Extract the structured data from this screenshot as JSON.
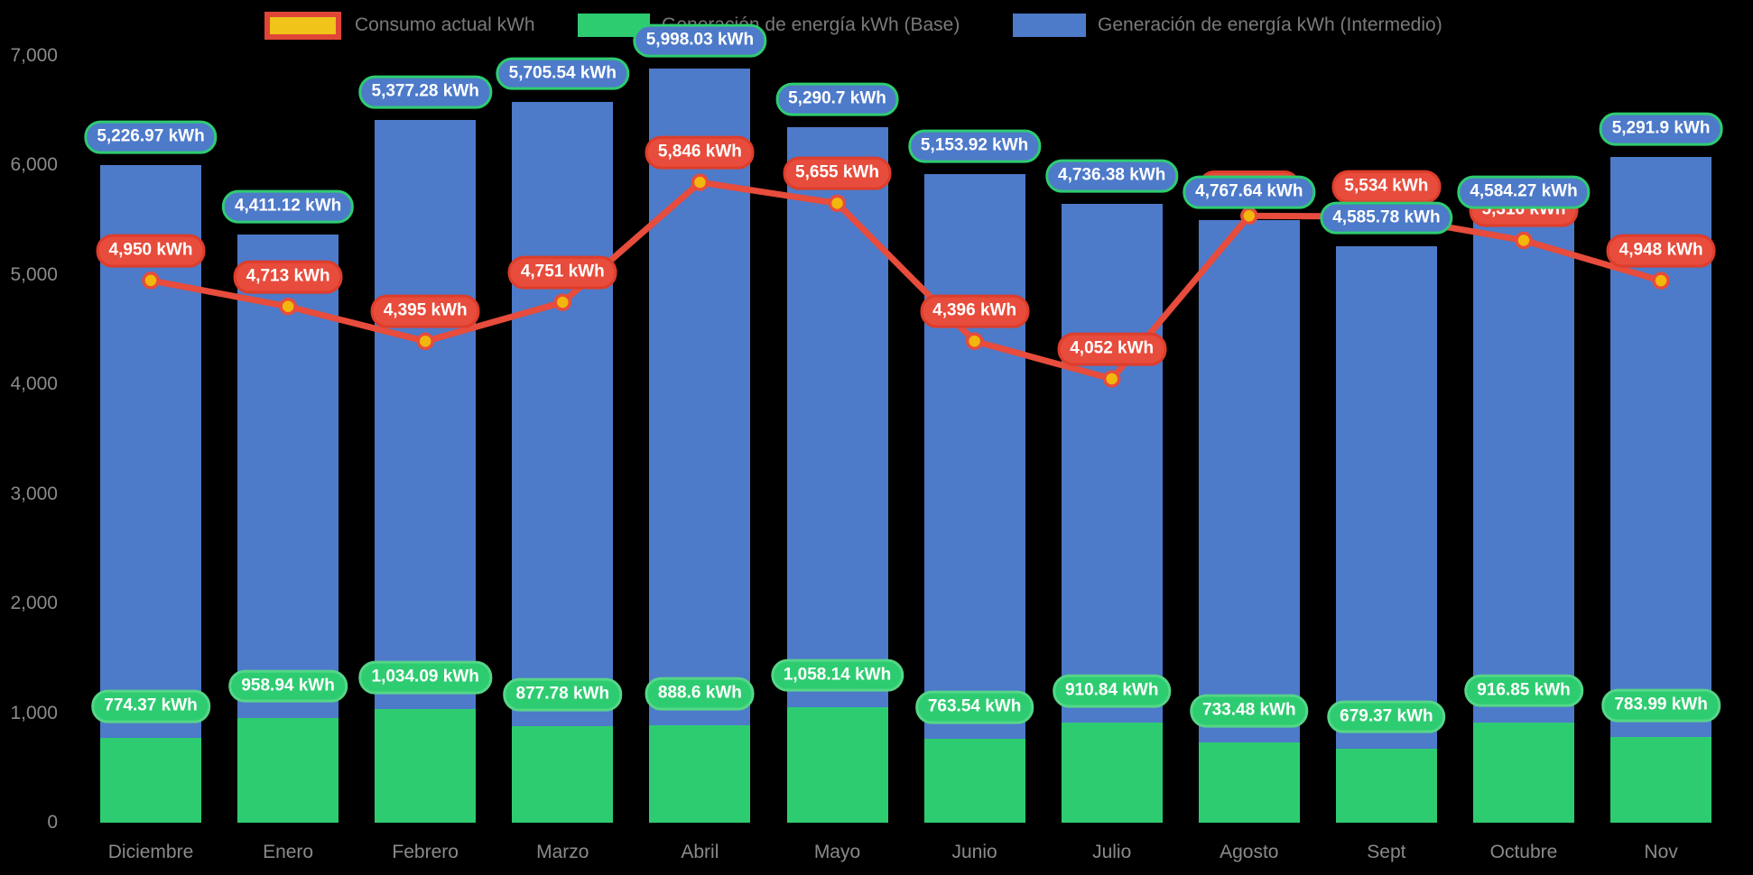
{
  "background": "#000000",
  "chart_data": {
    "type": "combo",
    "title": "",
    "categories": [
      "Diciembre",
      "Enero",
      "Febrero",
      "Marzo",
      "Abril",
      "Mayo",
      "Junio",
      "Julio",
      "Agosto",
      "Sept",
      "Octubre",
      "Nov"
    ],
    "series": [
      {
        "name": "Consumo actual kWh",
        "type": "line",
        "color": "#e74c3c",
        "marker": {
          "fill": "#f2b70d",
          "border": "#e74c3c"
        },
        "values": [
          4950,
          4713,
          4395,
          4751,
          5846,
          5655,
          4396,
          4052,
          5540,
          5534,
          5316,
          4948
        ],
        "labels": [
          "4,950 kWh",
          "4,713 kWh",
          "4,395 kWh",
          "4,751 kWh",
          "5,846 kWh",
          "5,655 kWh",
          "4,396 kWh",
          "4,052 kWh",
          "",
          "5,534 kWh",
          "5,316 kWh",
          "4,948 kWh"
        ]
      },
      {
        "name": "Generación de energía kWh (Base)",
        "type": "bar",
        "stack": "base",
        "color": "#2ecc71",
        "values": [
          774.37,
          958.94,
          1034.09,
          877.78,
          888.6,
          1058.14,
          763.54,
          910.84,
          733.48,
          679.37,
          916.85,
          783.99
        ],
        "labels": [
          "774.37 kWh",
          "958.94 kWh",
          "1,034.09 kWh",
          "877.78 kWh",
          "888.6 kWh",
          "1,058.14 kWh",
          "763.54 kWh",
          "910.84 kWh",
          "733.48 kWh",
          "679.37 kWh",
          "916.85 kWh",
          "783.99 kWh"
        ]
      },
      {
        "name": "Generación de energía kWh (Intermedio)",
        "type": "bar",
        "stack": "top",
        "color": "#4d7ac9",
        "values": [
          5226.97,
          4411.12,
          5377.28,
          5705.54,
          5998.03,
          5290.7,
          5153.92,
          4736.38,
          4767.64,
          4585.78,
          4584.27,
          5291.9
        ],
        "labels": [
          "5,226.97 kWh",
          "4,411.12 kWh",
          "5,377.28 kWh",
          "5,705.54 kWh",
          "5,998.03 kWh",
          "5,290.7 kWh",
          "5,153.92 kWh",
          "4,736.38 kWh",
          "4,767.64 kWh",
          "4,585.78 kWh",
          "4,584.27 kWh",
          "5,291.9 kWh"
        ]
      }
    ],
    "ylim": [
      0,
      7000
    ],
    "y_ticks": [
      {
        "value": 0,
        "label": "0"
      },
      {
        "value": 1000,
        "label": "1,000"
      },
      {
        "value": 2000,
        "label": "2,000"
      },
      {
        "value": 3000,
        "label": "3,000"
      },
      {
        "value": 4000,
        "label": "4,000"
      },
      {
        "value": 5000,
        "label": "5,000"
      },
      {
        "value": 6000,
        "label": "6,000"
      },
      {
        "value": 7000,
        "label": "7,000"
      }
    ],
    "grid": false,
    "legend_position": "top",
    "legend_swatches": [
      {
        "fill": "#f0c419",
        "border": "#e04638"
      },
      {
        "fill": "#2ecc71",
        "border": "#2ecc71"
      },
      {
        "fill": "#4d7ac9",
        "border": "#4d7ac9"
      }
    ],
    "badge_styles": {
      "consumo": {
        "fill": "#e74c3c",
        "border": "#dd3d2b",
        "text": "#ffffff"
      },
      "base": {
        "fill": "#2ecc71",
        "border": "#55d687",
        "text": "#ffffff"
      },
      "total": {
        "fill": "#4d7ac9",
        "border": "#2ecc71",
        "text": "#ffffff"
      }
    }
  }
}
